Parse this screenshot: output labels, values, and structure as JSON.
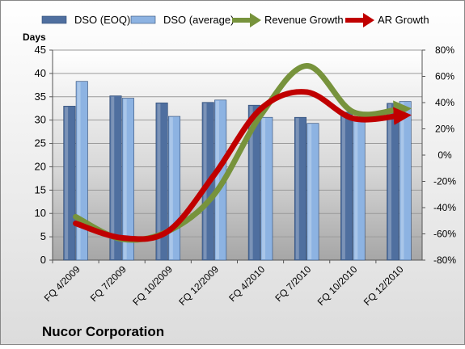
{
  "chart_data": {
    "type": "bar-line",
    "title": "Nucor Corporation",
    "y_label": "Days",
    "categories": [
      "FQ 4/2009",
      "FQ 7/2009",
      "FQ 10/2009",
      "FQ 12/2009",
      "FQ 4/2010",
      "FQ 7/2010",
      "FQ 10/2010",
      "FQ 12/2010"
    ],
    "series": [
      {
        "name": "DSO (EOQ)",
        "color": "#4f6f9f",
        "kind": "bar",
        "values": [
          33,
          35.2,
          33.7,
          33.8,
          33.2,
          30.6,
          31.7,
          33.6
        ]
      },
      {
        "name": "DSO (average)",
        "color": "#8db3e2",
        "kind": "bar",
        "values": [
          38.3,
          34.7,
          30.8,
          34.3,
          30.6,
          29.3,
          30.3,
          34
        ]
      },
      {
        "name": "Revenue Growth",
        "color": "#77933c",
        "kind": "line",
        "axis": "y2",
        "values": [
          -47,
          -64,
          -58,
          -30,
          30,
          68,
          33,
          35
        ]
      },
      {
        "name": "AR Growth",
        "color": "#c00000",
        "kind": "line",
        "axis": "y2",
        "values": [
          -52,
          -63,
          -58,
          -15,
          35,
          48,
          28,
          30
        ]
      }
    ],
    "ylim": [
      0,
      45
    ],
    "yticks": [
      0,
      5,
      10,
      15,
      20,
      25,
      30,
      35,
      40,
      45
    ],
    "y2lim": [
      -80,
      80
    ],
    "y2ticks": [
      {
        "value": -80,
        "label": "-80%"
      },
      {
        "value": -60,
        "label": "-60%"
      },
      {
        "value": -40,
        "label": "-40%"
      },
      {
        "value": -20,
        "label": "-20%"
      },
      {
        "value": 0,
        "label": "0%"
      },
      {
        "value": 20,
        "label": "20%"
      },
      {
        "value": 40,
        "label": "40%"
      },
      {
        "value": 60,
        "label": "60%"
      },
      {
        "value": 80,
        "label": "80%"
      }
    ],
    "grid": true
  }
}
